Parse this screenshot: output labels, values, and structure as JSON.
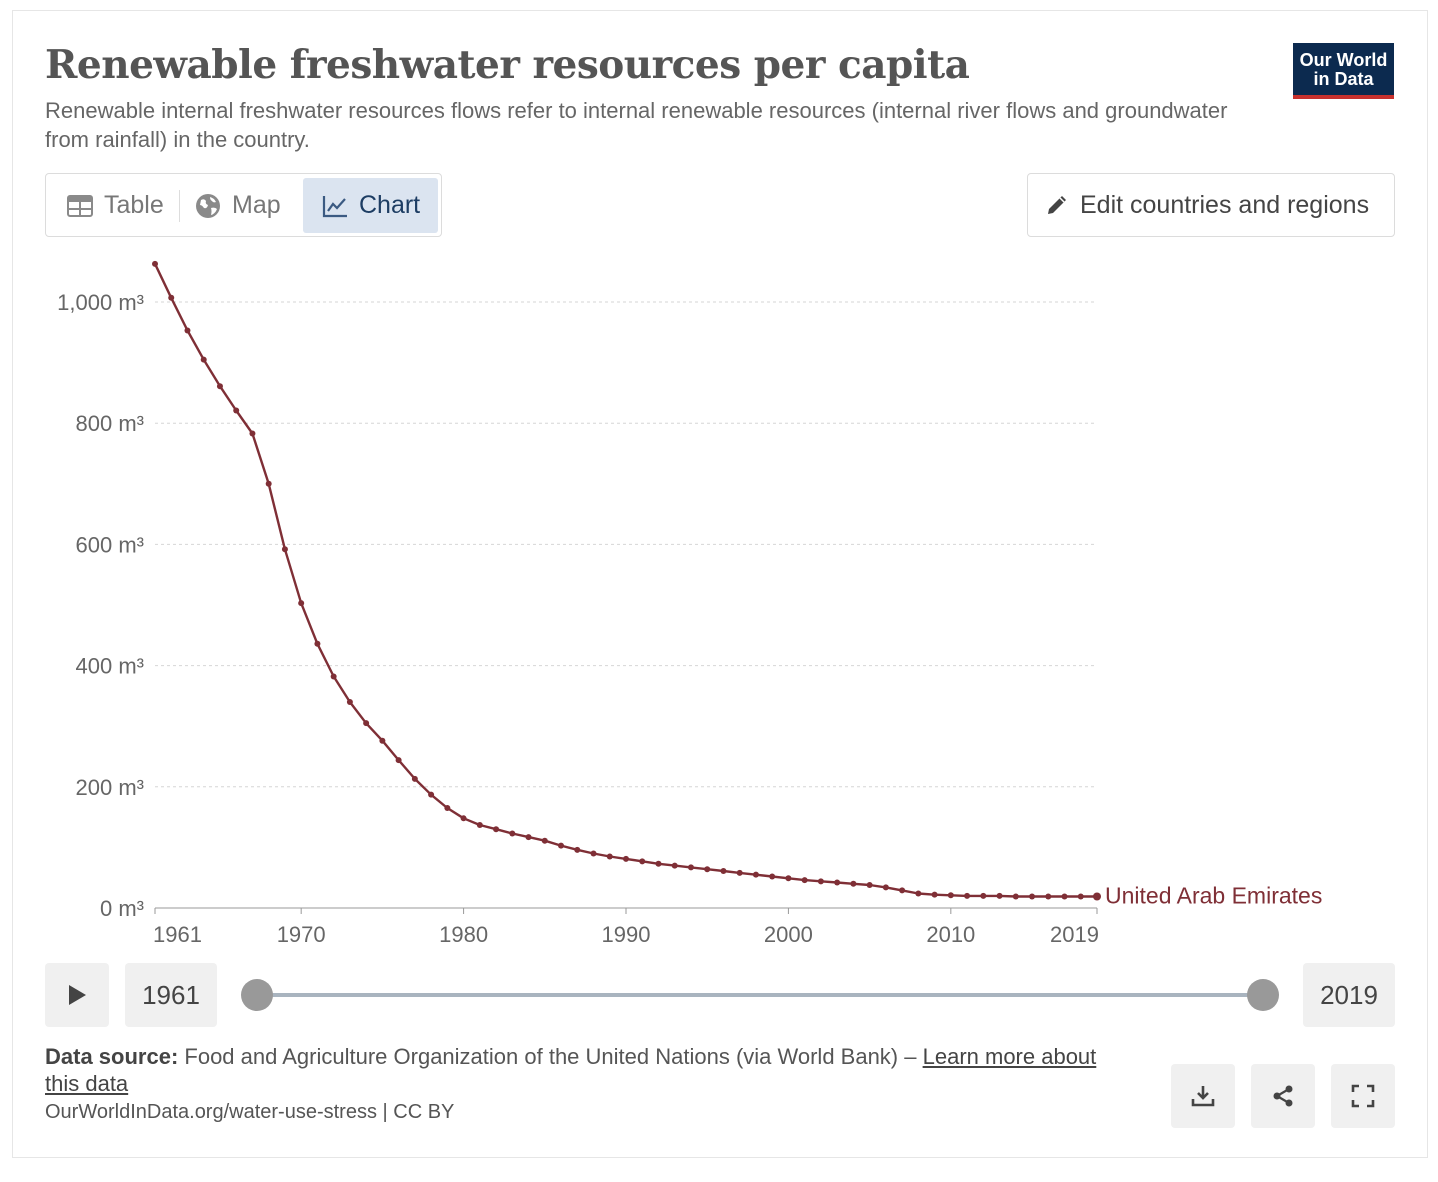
{
  "header": {
    "title": "Renewable freshwater resources per capita",
    "subtitle": "Renewable internal freshwater resources flows refer to internal renewable resources (internal river flows and groundwater from rainfall) in the country.",
    "logo_line1": "Our World",
    "logo_line2": "in Data"
  },
  "tabs": [
    {
      "label": "Table",
      "icon": "table-icon"
    },
    {
      "label": "Map",
      "icon": "globe-icon"
    },
    {
      "label": "Chart",
      "icon": "line-chart-icon",
      "active": true
    }
  ],
  "edit_button": {
    "label": "Edit countries and regions",
    "icon": "pencil-icon"
  },
  "timeline": {
    "start_year": "1961",
    "end_year": "2019",
    "start_fraction": 0,
    "end_fraction": 1
  },
  "footer": {
    "source_label": "Data source:",
    "source_text": " Food and Agriculture Organization of the United Nations (via World Bank) – ",
    "learn_more": "Learn more about this data",
    "license": "OurWorldInData.org/water-use-stress | CC BY"
  },
  "colors": {
    "series": "#7f2f36",
    "accent_tab_bg": "#dbe4f0",
    "logo_bg": "#0c2a4f",
    "logo_bar": "#c8312e"
  },
  "chart_data": {
    "type": "line",
    "unit": "m³",
    "xlim": [
      1961,
      2019
    ],
    "ylim": [
      0,
      1000
    ],
    "x_ticks": [
      1961,
      1970,
      1980,
      1990,
      2000,
      2010,
      2019
    ],
    "y_ticks": [
      {
        "value": 0,
        "label": "0 m³"
      },
      {
        "value": 200,
        "label": "200 m³"
      },
      {
        "value": 400,
        "label": "400 m³"
      },
      {
        "value": 600,
        "label": "600 m³"
      },
      {
        "value": 800,
        "label": "800 m³"
      },
      {
        "value": 1000,
        "label": "1,000 m³"
      }
    ],
    "grid": true,
    "series": [
      {
        "name": "United Arab Emirates",
        "x": [
          1961,
          1962,
          1963,
          1964,
          1965,
          1966,
          1967,
          1968,
          1969,
          1970,
          1971,
          1972,
          1973,
          1974,
          1975,
          1976,
          1977,
          1978,
          1979,
          1980,
          1981,
          1982,
          1983,
          1984,
          1985,
          1986,
          1987,
          1988,
          1989,
          1990,
          1991,
          1992,
          1993,
          1994,
          1995,
          1996,
          1997,
          1998,
          1999,
          2000,
          2001,
          2002,
          2003,
          2004,
          2005,
          2006,
          2007,
          2008,
          2009,
          2010,
          2011,
          2012,
          2013,
          2014,
          2015,
          2016,
          2017,
          2018,
          2019
        ],
        "y": [
          1063,
          1007,
          953,
          905,
          861,
          821,
          783,
          700,
          592,
          503,
          436,
          382,
          340,
          305,
          276,
          244,
          213,
          187,
          165,
          148,
          137,
          130,
          123,
          117,
          111,
          103,
          96,
          90,
          85,
          81,
          77,
          73,
          70,
          67,
          64,
          61,
          58,
          55,
          52,
          49,
          46,
          44,
          42,
          40,
          38,
          34,
          29,
          24,
          22,
          21,
          20,
          20,
          20,
          19,
          19,
          19,
          19,
          19,
          19
        ]
      }
    ]
  }
}
